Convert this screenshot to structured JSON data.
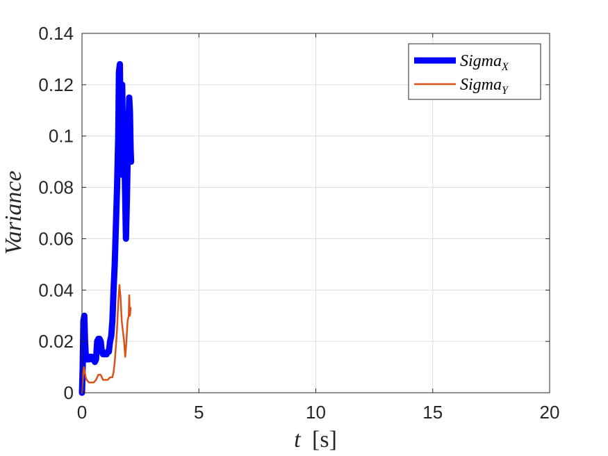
{
  "chart_data": {
    "type": "line",
    "xlabel": {
      "main": "t",
      "unit": "[s]"
    },
    "ylabel": "Variance",
    "xlim": [
      0,
      20
    ],
    "ylim": [
      0,
      0.14
    ],
    "xticks": [
      "0",
      "5",
      "10",
      "15",
      "20"
    ],
    "yticks": [
      "0",
      "0.02",
      "0.04",
      "0.06",
      "0.08",
      "0.1",
      "0.12",
      "0.14"
    ],
    "grid": true,
    "legend_position": "top-right",
    "series": [
      {
        "name": "Sigma",
        "subscript": "X",
        "color": "#0000ff",
        "x": [
          0.0,
          0.03,
          0.06,
          0.1,
          0.13,
          0.16,
          0.2,
          0.25,
          0.3,
          0.35,
          0.4,
          0.45,
          0.5,
          0.55,
          0.6,
          0.65,
          0.7,
          0.75,
          0.8,
          0.85,
          0.9,
          0.95,
          1.0,
          1.05,
          1.1,
          1.15,
          1.2,
          1.25,
          1.3,
          1.35,
          1.4,
          1.45,
          1.5,
          1.55,
          1.58,
          1.62,
          1.65,
          1.68,
          1.72,
          1.75,
          1.78,
          1.82,
          1.85,
          1.88,
          1.92,
          1.95,
          1.98,
          2.02,
          2.05,
          2.08,
          2.1
        ],
        "y": [
          0.0,
          0.01,
          0.028,
          0.03,
          0.02,
          0.015,
          0.013,
          0.013,
          0.013,
          0.014,
          0.014,
          0.013,
          0.013,
          0.012,
          0.013,
          0.02,
          0.021,
          0.021,
          0.02,
          0.016,
          0.015,
          0.015,
          0.015,
          0.015,
          0.016,
          0.016,
          0.02,
          0.022,
          0.028,
          0.04,
          0.05,
          0.065,
          0.08,
          0.1,
          0.125,
          0.128,
          0.105,
          0.085,
          0.12,
          0.1,
          0.085,
          0.09,
          0.075,
          0.06,
          0.075,
          0.09,
          0.1,
          0.115,
          0.11,
          0.095,
          0.09
        ]
      },
      {
        "name": "Sigma",
        "subscript": "Y",
        "color": "#d95319",
        "x": [
          0.0,
          0.04,
          0.08,
          0.12,
          0.16,
          0.2,
          0.3,
          0.4,
          0.5,
          0.6,
          0.7,
          0.8,
          0.9,
          1.0,
          1.1,
          1.2,
          1.3,
          1.35,
          1.4,
          1.45,
          1.5,
          1.55,
          1.6,
          1.65,
          1.7,
          1.75,
          1.8,
          1.85,
          1.9,
          1.95,
          2.0,
          2.02,
          2.05,
          2.08
        ],
        "y": [
          0.0,
          0.006,
          0.01,
          0.008,
          0.006,
          0.005,
          0.004,
          0.004,
          0.004,
          0.005,
          0.007,
          0.007,
          0.005,
          0.005,
          0.005,
          0.006,
          0.006,
          0.008,
          0.012,
          0.018,
          0.025,
          0.035,
          0.042,
          0.037,
          0.028,
          0.024,
          0.02,
          0.014,
          0.02,
          0.028,
          0.03,
          0.038,
          0.03,
          0.033
        ]
      }
    ]
  }
}
